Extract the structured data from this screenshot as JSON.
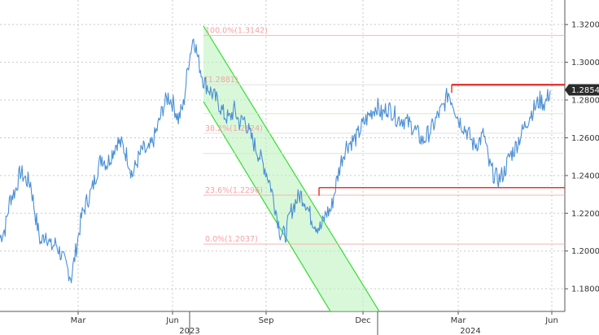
{
  "chart_data": {
    "type": "line",
    "title": "",
    "xlabel": "",
    "ylabel": "",
    "ylim": [
      1.168,
      1.333
    ],
    "y_ticks": [
      "1.3200",
      "1.3000",
      "1.2800",
      "1.2600",
      "1.2400",
      "1.2200",
      "1.2000",
      "1.1800"
    ],
    "month_ticks": [
      "Mar",
      "Jun",
      "Sep",
      "Dec",
      "Mar",
      "Jun"
    ],
    "year_labels": [
      "2023",
      "2024"
    ],
    "grid": true,
    "series": [
      {
        "values": [
          1.207,
          1.212,
          1.228,
          1.232,
          1.242,
          1.238,
          1.236,
          1.218,
          1.204,
          1.21,
          1.202,
          1.204,
          1.198,
          1.192,
          1.186,
          1.202,
          1.218,
          1.226,
          1.232,
          1.242,
          1.25,
          1.246,
          1.252,
          1.258,
          1.256,
          1.25,
          1.24,
          1.248,
          1.254,
          1.252,
          1.258,
          1.266,
          1.276,
          1.282,
          1.278,
          1.27,
          1.277,
          1.3,
          1.314,
          1.3,
          1.29,
          1.286,
          1.282,
          1.278,
          1.272,
          1.27,
          1.275,
          1.268,
          1.27,
          1.262,
          1.256,
          1.25,
          1.244,
          1.236,
          1.224,
          1.21,
          1.208,
          1.22,
          1.226,
          1.23,
          1.226,
          1.218,
          1.214,
          1.212,
          1.22,
          1.222,
          1.236,
          1.248,
          1.256,
          1.258,
          1.26,
          1.266,
          1.27,
          1.274,
          1.277,
          1.272,
          1.276,
          1.274,
          1.27,
          1.27,
          1.268,
          1.266,
          1.262,
          1.258,
          1.262,
          1.266,
          1.272,
          1.276,
          1.284,
          1.278,
          1.27,
          1.266,
          1.262,
          1.256,
          1.258,
          1.262,
          1.246,
          1.24,
          1.238,
          1.242,
          1.25,
          1.254,
          1.26,
          1.266,
          1.272,
          1.276,
          1.28,
          1.278,
          1.285
        ],
        "x_start": "2023-01-02",
        "x_step_days": 5
      }
    ],
    "fib_levels": [
      {
        "label": "100.0%(1.3142)",
        "value": 1.3142
      },
      {
        "label": "(1.2881)",
        "value": 1.2881
      },
      {
        "label": "",
        "value": 1.2728
      },
      {
        "label": "38.2%(1.2624)",
        "value": 1.2624
      },
      {
        "label": "",
        "value": 1.2517
      },
      {
        "label": "23.6%(1.2296)",
        "value": 1.2296
      },
      {
        "label": "0.0%(1.2037)",
        "value": 1.2037
      }
    ],
    "resistance_lines": [
      {
        "value": 1.2881,
        "color": "#e53935"
      },
      {
        "value": 1.2336,
        "color": "#e53935"
      }
    ],
    "channel": {
      "color": "#33dd33",
      "fill": "#b9f2b9"
    },
    "current_price": "1.2854",
    "current_price_color": "#2b2b2b",
    "series_color": "#4a8fd6"
  }
}
